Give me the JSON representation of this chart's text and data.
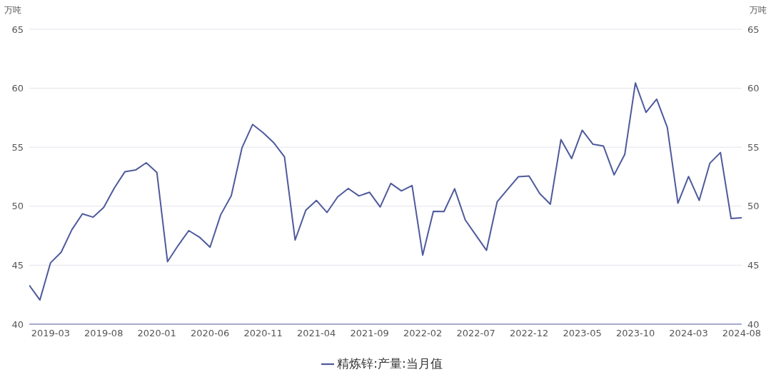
{
  "chart_data": {
    "type": "line",
    "ylabel": "万吨",
    "y2label": "万吨",
    "x": [
      "2019-01",
      "2019-02",
      "2019-03",
      "2019-04",
      "2019-05",
      "2019-06",
      "2019-07",
      "2019-08",
      "2019-09",
      "2019-10",
      "2019-11",
      "2019-12",
      "2020-01",
      "2020-02",
      "2020-03",
      "2020-04",
      "2020-05",
      "2020-06",
      "2020-07",
      "2020-08",
      "2020-09",
      "2020-10",
      "2020-11",
      "2020-12",
      "2021-01",
      "2021-02",
      "2021-03",
      "2021-04",
      "2021-05",
      "2021-06",
      "2021-07",
      "2021-08",
      "2021-09",
      "2021-10",
      "2021-11",
      "2021-12",
      "2022-01",
      "2022-02",
      "2022-03",
      "2022-04",
      "2022-05",
      "2022-06",
      "2022-07",
      "2022-08",
      "2022-09",
      "2022-10",
      "2022-11",
      "2022-12",
      "2023-01",
      "2023-02",
      "2023-03",
      "2023-04",
      "2023-05",
      "2023-06",
      "2023-07",
      "2023-08",
      "2023-09",
      "2023-10",
      "2023-11",
      "2023-12",
      "2024-01",
      "2024-02",
      "2024-03",
      "2024-04",
      "2024-05",
      "2024-06",
      "2024-07",
      "2024-08"
    ],
    "series": [
      {
        "name": "精炼锌:产量:当月值",
        "color": "#4e5a9c",
        "values": [
          43.3,
          42.05,
          45.2,
          46.1,
          48.0,
          49.35,
          49.07,
          49.9,
          51.55,
          52.93,
          53.07,
          53.68,
          52.87,
          45.3,
          46.67,
          47.93,
          47.38,
          46.52,
          49.27,
          50.9,
          54.94,
          56.93,
          56.22,
          55.37,
          54.19,
          47.13,
          49.65,
          50.49,
          49.47,
          50.79,
          51.5,
          50.87,
          51.18,
          49.94,
          51.93,
          51.3,
          51.75,
          45.85,
          49.57,
          49.55,
          51.48,
          48.84,
          47.54,
          46.26,
          50.38,
          51.45,
          52.5,
          52.56,
          51.08,
          50.17,
          55.65,
          54.04,
          56.44,
          55.26,
          55.1,
          52.66,
          54.39,
          60.45,
          57.95,
          59.07,
          56.69,
          50.26,
          52.52,
          50.49,
          53.64,
          54.55,
          48.96,
          49.02
        ]
      }
    ],
    "xlim": [
      "2019-01",
      "2024-08"
    ],
    "xticks": [
      "2019-03",
      "2019-08",
      "2020-01",
      "2020-06",
      "2020-11",
      "2021-04",
      "2021-09",
      "2022-02",
      "2022-07",
      "2022-12",
      "2023-05",
      "2023-10",
      "2024-03",
      "2024-08"
    ],
    "ylim": [
      40,
      65
    ],
    "yticks": [
      40,
      45,
      50,
      55,
      60,
      65
    ],
    "y2lim": [
      40,
      65
    ],
    "y2ticks": [
      40,
      45,
      50,
      55,
      60,
      65
    ],
    "grid": "y",
    "legend": "bottom",
    "marker": "none",
    "line_style": "solid"
  }
}
